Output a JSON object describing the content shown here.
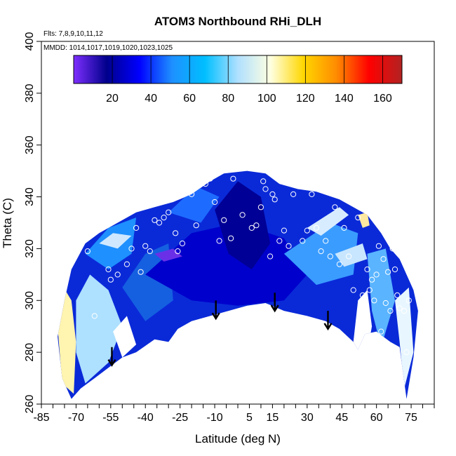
{
  "chart_data": {
    "type": "heatmap",
    "title": "ATOM3 Northbound RHi_DLH",
    "notes": [
      "Flts: 7,8,9,10,11,12",
      "MMDD: 1014,1017,1019,1020,1023,1025"
    ],
    "xlabel": "Latitude (deg N)",
    "ylabel": "Theta (C)",
    "xlim": [
      -85,
      85
    ],
    "ylim": [
      260,
      400
    ],
    "x_tick_labels": [
      "-85",
      "-70",
      "-55",
      "-40",
      "-25",
      "-10",
      "5",
      "15",
      "30",
      "45",
      "60",
      "75"
    ],
    "y_tick_labels": [
      "260",
      "280",
      "300",
      "320",
      "340",
      "360",
      "380",
      "400"
    ],
    "colorbar": {
      "min": 0,
      "max": 170,
      "tick_labels": [
        "20",
        "40",
        "60",
        "80",
        "100",
        "120",
        "140",
        "160"
      ],
      "colors": [
        "#7f2fff",
        "#00008b",
        "#0000ff",
        "#1e90ff",
        "#00bfff",
        "#b0e0ff",
        "#ffffe0",
        "#ffd700",
        "#ff8c00",
        "#ff0000",
        "#b22222"
      ]
    },
    "field_boundary": {
      "upper": [
        [
          -75,
          300
        ],
        [
          -72,
          312
        ],
        [
          -66,
          322
        ],
        [
          -60,
          326
        ],
        [
          -52,
          330
        ],
        [
          -44,
          334
        ],
        [
          -36,
          336
        ],
        [
          -28,
          338
        ],
        [
          -20,
          341
        ],
        [
          -12,
          346
        ],
        [
          -6,
          349
        ],
        [
          4,
          350
        ],
        [
          12,
          349
        ],
        [
          18,
          345
        ],
        [
          26,
          343
        ],
        [
          34,
          342
        ],
        [
          44,
          339
        ],
        [
          52,
          335
        ],
        [
          56,
          333
        ],
        [
          62,
          326
        ],
        [
          66,
          320
        ],
        [
          70,
          316
        ],
        [
          73,
          310
        ],
        [
          76,
          304
        ],
        [
          78,
          296
        ]
      ],
      "lower": [
        [
          78,
          296
        ],
        [
          76,
          278
        ],
        [
          73,
          262
        ],
        [
          70,
          282
        ],
        [
          66,
          284
        ],
        [
          60,
          288
        ],
        [
          55,
          287
        ],
        [
          52,
          281
        ],
        [
          50,
          284
        ],
        [
          44,
          289
        ],
        [
          38,
          292
        ],
        [
          30,
          294
        ],
        [
          20,
          296
        ],
        [
          12,
          299
        ],
        [
          4,
          298
        ],
        [
          -4,
          296
        ],
        [
          -12,
          294
        ],
        [
          -20,
          292
        ],
        [
          -26,
          289
        ],
        [
          -30,
          284
        ],
        [
          -36,
          285
        ],
        [
          -44,
          280
        ],
        [
          -50,
          278
        ],
        [
          -56,
          274
        ],
        [
          -62,
          270
        ],
        [
          -68,
          266
        ],
        [
          -72,
          262
        ],
        [
          -76,
          270
        ],
        [
          -78,
          286
        ]
      ]
    },
    "regions": [
      {
        "color": "#fff4b0",
        "points": [
          [
            -78,
            290
          ],
          [
            -76,
            306
          ],
          [
            -72,
            300
          ],
          [
            -70,
            284
          ],
          [
            -71,
            264
          ],
          [
            -76,
            268
          ]
        ]
      },
      {
        "color": "#aee0ff",
        "points": [
          [
            -70,
            300
          ],
          [
            -64,
            310
          ],
          [
            -56,
            304
          ],
          [
            -50,
            290
          ],
          [
            -56,
            276
          ],
          [
            -66,
            268
          ],
          [
            -70,
            280
          ]
        ]
      },
      {
        "color": "#1e90ff",
        "points": [
          [
            -66,
            318
          ],
          [
            -56,
            328
          ],
          [
            -44,
            332
          ],
          [
            -46,
            318
          ],
          [
            -56,
            312
          ]
        ]
      },
      {
        "color": "#cfe8ff",
        "points": [
          [
            -60,
            322
          ],
          [
            -54,
            326
          ],
          [
            -46,
            325
          ],
          [
            -52,
            320
          ]
        ]
      },
      {
        "color": "#1560e0",
        "points": [
          [
            -50,
            305
          ],
          [
            -40,
            318
          ],
          [
            -30,
            322
          ],
          [
            -28,
            300
          ],
          [
            -40,
            292
          ]
        ]
      },
      {
        "color": "#0000cc",
        "points": [
          [
            -40,
            310
          ],
          [
            -20,
            326
          ],
          [
            0,
            330
          ],
          [
            20,
            324
          ],
          [
            30,
            310
          ],
          [
            20,
            300
          ],
          [
            0,
            298
          ],
          [
            -20,
            300
          ]
        ]
      },
      {
        "color": "#000096",
        "points": [
          [
            -10,
            335
          ],
          [
            0,
            346
          ],
          [
            10,
            340
          ],
          [
            14,
            322
          ],
          [
            6,
            312
          ],
          [
            -4,
            318
          ]
        ]
      },
      {
        "color": "#1e6cff",
        "points": [
          [
            -30,
            334
          ],
          [
            -18,
            344
          ],
          [
            -8,
            340
          ],
          [
            -16,
            330
          ]
        ]
      },
      {
        "color": "#3a9cff",
        "points": [
          [
            20,
            318
          ],
          [
            40,
            330
          ],
          [
            52,
            326
          ],
          [
            50,
            310
          ],
          [
            34,
            306
          ]
        ]
      },
      {
        "color": "#d8ecff",
        "points": [
          [
            30,
            328
          ],
          [
            44,
            336
          ],
          [
            48,
            333
          ],
          [
            36,
            325
          ]
        ]
      },
      {
        "color": "#c8e6ff",
        "points": [
          [
            42,
            318
          ],
          [
            54,
            322
          ],
          [
            56,
            316
          ],
          [
            46,
            313
          ]
        ]
      },
      {
        "color": "#ffe9a0",
        "points": [
          [
            52,
            333
          ],
          [
            56,
            334
          ],
          [
            57,
            329
          ],
          [
            54,
            328
          ]
        ]
      },
      {
        "color": "#ffffff",
        "points": [
          [
            52,
            300
          ],
          [
            56,
            304
          ],
          [
            58,
            290
          ],
          [
            54,
            270
          ],
          [
            50,
            284
          ]
        ]
      },
      {
        "color": "#5ab4ff",
        "points": [
          [
            56,
            318
          ],
          [
            64,
            320
          ],
          [
            68,
            300
          ],
          [
            62,
            282
          ],
          [
            58,
            296
          ]
        ]
      },
      {
        "color": "#e8f6ff",
        "points": [
          [
            68,
            300
          ],
          [
            74,
            305
          ],
          [
            76,
            280
          ],
          [
            72,
            266
          ],
          [
            70,
            284
          ]
        ]
      },
      {
        "color": "#6a30e8",
        "points": [
          [
            -36,
            318
          ],
          [
            -28,
            320
          ],
          [
            -24,
            317
          ],
          [
            -32,
            315
          ]
        ]
      },
      {
        "color": "#ffffff",
        "points": [
          [
            -54,
            288
          ],
          [
            -48,
            294
          ],
          [
            -44,
            283
          ],
          [
            -50,
            278
          ]
        ]
      }
    ],
    "arrows": [
      {
        "x": -54.5,
        "y_top": 282,
        "y_tip": 275
      },
      {
        "x": -9.5,
        "y_top": 300,
        "y_tip": 293
      },
      {
        "x": 16,
        "y_top": 303,
        "y_tip": 296
      },
      {
        "x": 39,
        "y_top": 296,
        "y_tip": 289
      }
    ],
    "points": [
      [
        -68,
        323
      ],
      [
        -65,
        319
      ],
      [
        -62,
        294
      ],
      [
        -58,
        270
      ],
      [
        -56,
        312
      ],
      [
        -55,
        308
      ],
      [
        -52,
        310
      ],
      [
        -48,
        314
      ],
      [
        -46,
        320
      ],
      [
        -44,
        328
      ],
      [
        -42,
        311
      ],
      [
        -40,
        321
      ],
      [
        -38,
        319
      ],
      [
        -36,
        331
      ],
      [
        -34,
        330
      ],
      [
        -32,
        332
      ],
      [
        -30,
        334
      ],
      [
        -27,
        326
      ],
      [
        -26,
        319
      ],
      [
        -24,
        322
      ],
      [
        -20,
        341
      ],
      [
        -18,
        329
      ],
      [
        -16,
        345
      ],
      [
        -14,
        345
      ],
      [
        -12,
        347
      ],
      [
        -10,
        338
      ],
      [
        -8,
        323
      ],
      [
        -6,
        331
      ],
      [
        -3,
        324
      ],
      [
        -2,
        347
      ],
      [
        2,
        333
      ],
      [
        6,
        328
      ],
      [
        8,
        329
      ],
      [
        10,
        336
      ],
      [
        11,
        346
      ],
      [
        12,
        343
      ],
      [
        14,
        317
      ],
      [
        15,
        341
      ],
      [
        16,
        339
      ],
      [
        18,
        323
      ],
      [
        20,
        327
      ],
      [
        22,
        321
      ],
      [
        24,
        341
      ],
      [
        28,
        323
      ],
      [
        30,
        327
      ],
      [
        32,
        341
      ],
      [
        34,
        328
      ],
      [
        36,
        319
      ],
      [
        38,
        323
      ],
      [
        40,
        317
      ],
      [
        42,
        336
      ],
      [
        44,
        314
      ],
      [
        46,
        328
      ],
      [
        48,
        317
      ],
      [
        50,
        304
      ],
      [
        52,
        332
      ],
      [
        54,
        302
      ],
      [
        55,
        296
      ],
      [
        56,
        312
      ],
      [
        57,
        304
      ],
      [
        58,
        308
      ],
      [
        59,
        300
      ],
      [
        60,
        310
      ],
      [
        61,
        321
      ],
      [
        62,
        288
      ],
      [
        63,
        316
      ],
      [
        64,
        299
      ],
      [
        65,
        311
      ],
      [
        66,
        296
      ],
      [
        67,
        320
      ],
      [
        68,
        312
      ],
      [
        69,
        302
      ],
      [
        70,
        297
      ],
      [
        72,
        296
      ],
      [
        73,
        280
      ],
      [
        74,
        300
      ],
      [
        75,
        322
      ]
    ]
  }
}
